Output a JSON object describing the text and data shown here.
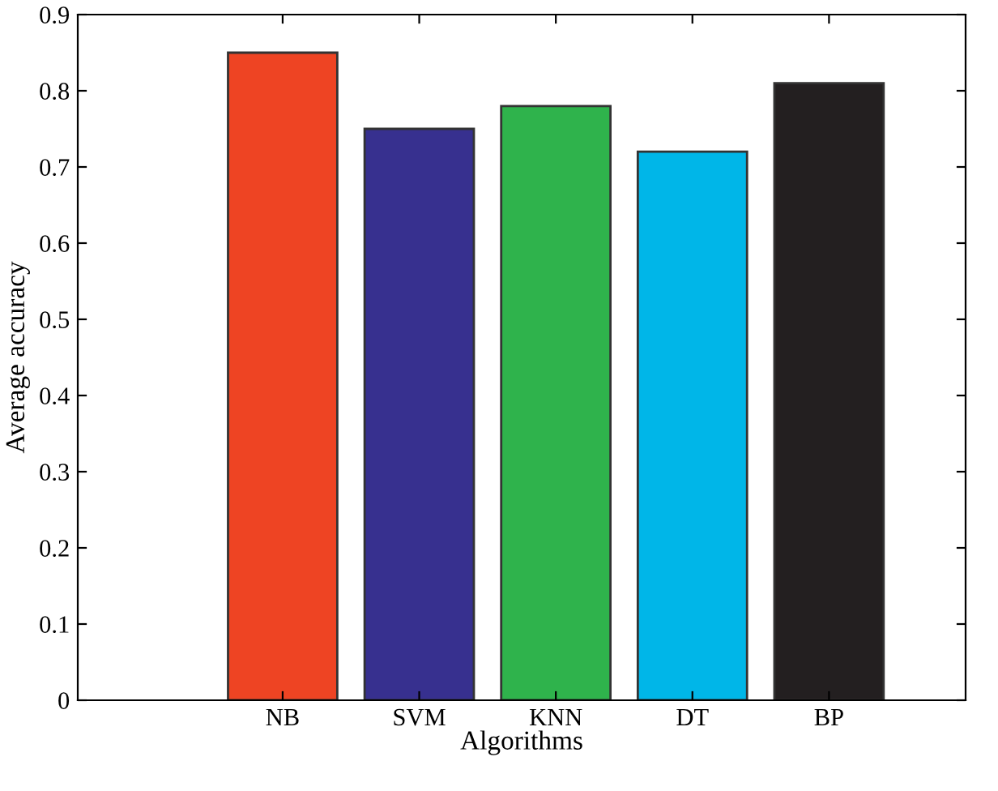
{
  "chart_data": {
    "type": "bar",
    "xlabel": "Algorithms",
    "ylabel": "Average accuracy",
    "categories": [
      "NB",
      "SVM",
      "KNN",
      "DT",
      "BP"
    ],
    "values": [
      0.85,
      0.75,
      0.78,
      0.72,
      0.81
    ],
    "colors": [
      "#ee4423",
      "#37308f",
      "#2fb34c",
      "#00b6e8",
      "#231f20"
    ],
    "ylim": [
      0,
      0.9
    ],
    "yticks": [
      0,
      0.1,
      0.2,
      0.3,
      0.4,
      0.5,
      0.6,
      0.7,
      0.8,
      0.9
    ],
    "grid": false,
    "legend": false
  }
}
